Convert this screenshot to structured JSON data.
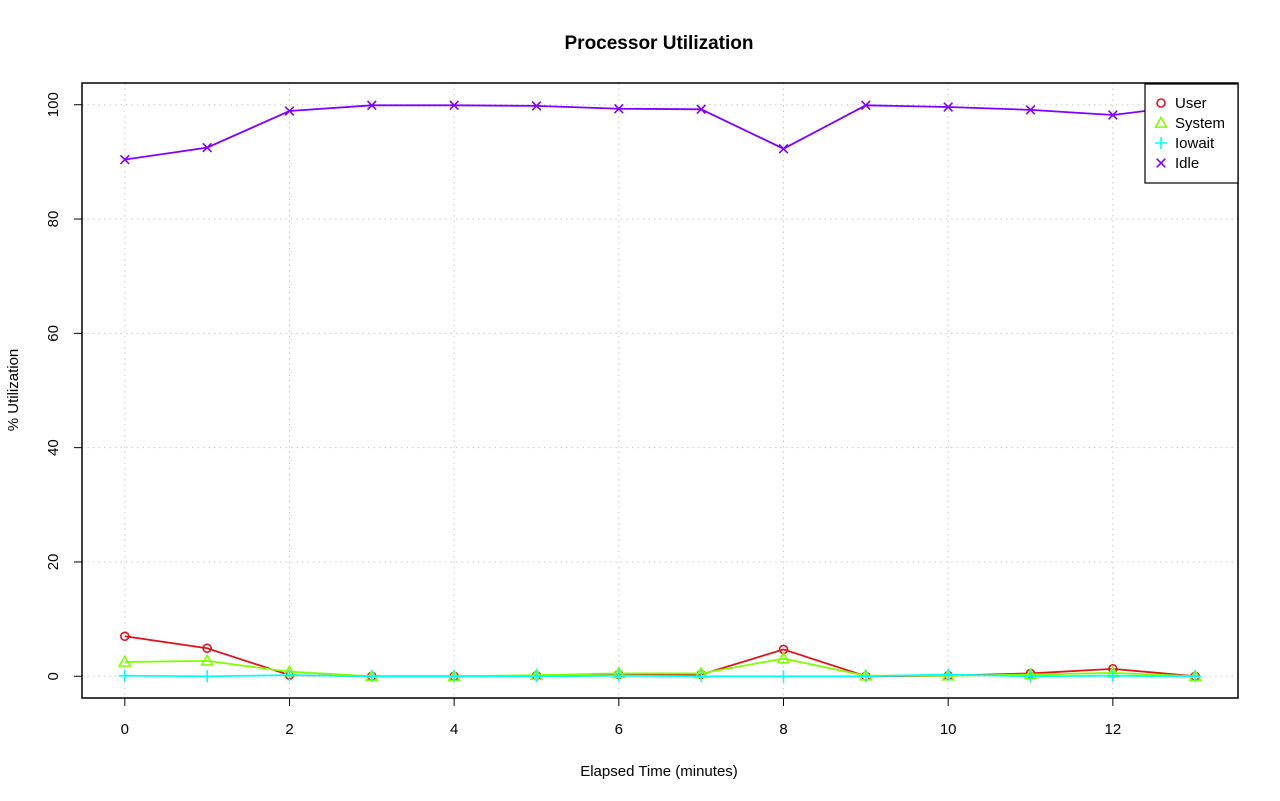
{
  "chart_data": {
    "type": "line",
    "title": "Processor Utilization",
    "xlabel": "Elapsed Time (minutes)",
    "ylabel": "% Utilization",
    "xlim": [
      -0.52,
      13.52
    ],
    "ylim": [
      -3.8,
      103.8
    ],
    "x_ticks": [
      0,
      2,
      4,
      6,
      8,
      10,
      12
    ],
    "y_ticks": [
      0,
      20,
      40,
      60,
      80,
      100
    ],
    "grid": true,
    "legend_position": "top-right",
    "x": [
      0,
      1,
      2,
      3,
      4,
      5,
      6,
      7,
      8,
      9,
      10,
      11,
      12,
      13
    ],
    "series": [
      {
        "name": "User",
        "color": "#e0141e",
        "marker": "circle",
        "values": [
          7.0,
          4.9,
          0.2,
          0.0,
          0.0,
          0.1,
          0.3,
          0.3,
          4.7,
          0.0,
          0.1,
          0.5,
          1.3,
          0.0
        ]
      },
      {
        "name": "System",
        "color": "#80ff00",
        "marker": "triangle",
        "values": [
          2.5,
          2.7,
          0.8,
          0.0,
          0.0,
          0.2,
          0.5,
          0.5,
          3.1,
          0.1,
          0.1,
          0.3,
          0.6,
          0.0
        ]
      },
      {
        "name": "Iowait",
        "color": "#00ffff",
        "marker": "plus",
        "values": [
          0.1,
          0.0,
          0.2,
          0.0,
          0.0,
          0.0,
          0.1,
          0.0,
          0.0,
          0.0,
          0.3,
          0.0,
          0.1,
          0.0
        ]
      },
      {
        "name": "Idle",
        "color": "#8000ff",
        "marker": "cross",
        "values": [
          90.4,
          92.5,
          98.9,
          99.9,
          99.9,
          99.8,
          99.3,
          99.2,
          92.3,
          99.9,
          99.6,
          99.1,
          98.2,
          100.0
        ]
      }
    ]
  }
}
